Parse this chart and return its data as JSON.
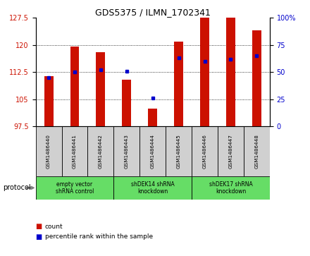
{
  "title": "GDS5375 / ILMN_1702341",
  "samples": [
    "GSM1486440",
    "GSM1486441",
    "GSM1486442",
    "GSM1486443",
    "GSM1486444",
    "GSM1486445",
    "GSM1486446",
    "GSM1486447",
    "GSM1486448"
  ],
  "counts": [
    111.5,
    119.5,
    118.0,
    110.5,
    102.5,
    121.0,
    127.5,
    127.5,
    124.0
  ],
  "percentiles": [
    45,
    50,
    52,
    51,
    26,
    63,
    60,
    62,
    65
  ],
  "ymin": 97.5,
  "ymax": 127.5,
  "yticks_left": [
    97.5,
    105.0,
    112.5,
    120.0,
    127.5
  ],
  "yticks_right": [
    0,
    25,
    50,
    75,
    100
  ],
  "groups": [
    {
      "label": "empty vector\nshRNA control",
      "start": 0,
      "end": 3
    },
    {
      "label": "shDEK14 shRNA\nknockdown",
      "start": 3,
      "end": 6
    },
    {
      "label": "shDEK17 shRNA\nknockdown",
      "start": 6,
      "end": 9
    }
  ],
  "bar_color": "#CC1100",
  "dot_color": "#0000CC",
  "bar_width": 0.35,
  "bg_color": "#ffffff",
  "gray_color": "#D0D0D0",
  "green_color": "#66DD66",
  "protocol_label": "protocol",
  "legend_count": "count",
  "legend_pct": "percentile rank within the sample",
  "title_fontsize": 9,
  "label_fontsize": 6,
  "tick_fontsize": 7
}
